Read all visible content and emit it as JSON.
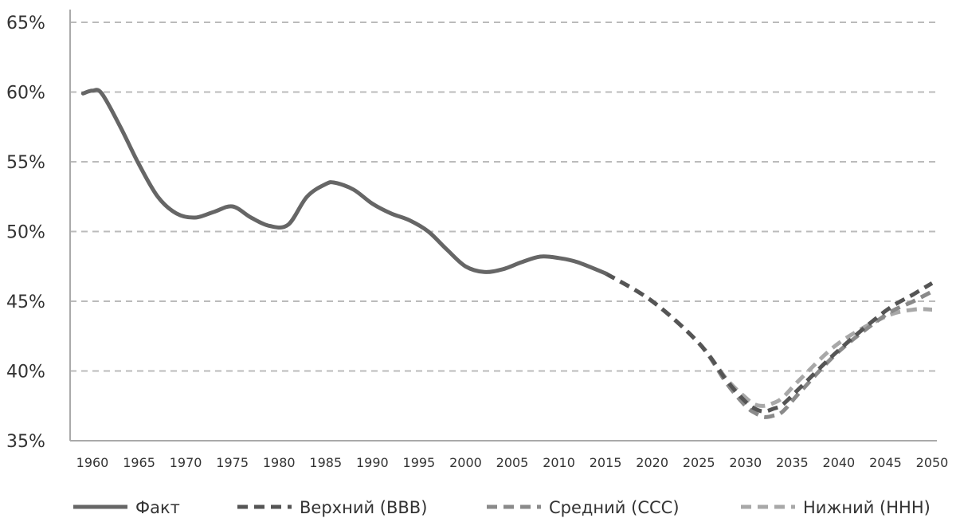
{
  "chart_data": {
    "type": "line",
    "title": "",
    "xlabel": "",
    "ylabel": "",
    "ylim": [
      35,
      65
    ],
    "xlim": [
      1960,
      2050
    ],
    "yticks": [
      "35%",
      "40%",
      "45%",
      "50%",
      "55%",
      "60%",
      "65%"
    ],
    "ytick_values": [
      35,
      40,
      45,
      50,
      55,
      60,
      65
    ],
    "xticks": [
      "1960",
      "1965",
      "1970",
      "1975",
      "1980",
      "1985",
      "1990",
      "1995",
      "2000",
      "2005",
      "2010",
      "2015",
      "2020",
      "2025",
      "2030",
      "2035",
      "2040",
      "2045",
      "2050"
    ],
    "xtick_values": [
      1960,
      1965,
      1970,
      1975,
      1980,
      1985,
      1990,
      1995,
      2000,
      2005,
      2010,
      2015,
      2020,
      2025,
      2030,
      2035,
      2040,
      2045,
      2050
    ],
    "grid": "horizontal dashed",
    "legend_position": "bottom",
    "series": [
      {
        "name": "Факт",
        "style": "solid",
        "color": "#666666",
        "x": [
          1959,
          1960,
          1961,
          1963,
          1965,
          1967,
          1969,
          1971,
          1973,
          1975,
          1977,
          1979,
          1981,
          1983,
          1985,
          1986,
          1988,
          1990,
          1992,
          1994,
          1996,
          1998,
          2000,
          2002,
          2004,
          2006,
          2008,
          2010,
          2012,
          2015
        ],
        "values": [
          59.9,
          60.1,
          59.9,
          57.5,
          54.8,
          52.5,
          51.3,
          51.0,
          51.4,
          51.8,
          51.0,
          50.4,
          50.5,
          52.5,
          53.4,
          53.5,
          53.0,
          52.0,
          51.3,
          50.8,
          50.0,
          48.7,
          47.5,
          47.1,
          47.3,
          47.8,
          48.2,
          48.1,
          47.8,
          47.0
        ]
      },
      {
        "name": "Верхний (ВВВ)",
        "style": "dashed",
        "color": "#555555",
        "x": [
          2015,
          2020,
          2025,
          2028,
          2030,
          2031,
          2032,
          2033,
          2034,
          2036,
          2040,
          2045,
          2048,
          2050
        ],
        "values": [
          47.0,
          45.0,
          42.0,
          39.3,
          37.8,
          37.3,
          37.1,
          37.3,
          37.6,
          38.9,
          41.5,
          44.3,
          45.5,
          46.3
        ]
      },
      {
        "name": "Средний (ССС)",
        "style": "dashed",
        "color": "#8a8a8a",
        "x": [
          2015,
          2020,
          2025,
          2028,
          2030,
          2031,
          2032,
          2033,
          2034,
          2036,
          2040,
          2045,
          2048,
          2050
        ],
        "values": [
          47.0,
          45.0,
          42.0,
          39.1,
          37.5,
          37.0,
          36.7,
          36.8,
          37.1,
          38.6,
          41.4,
          44.0,
          45.0,
          45.7
        ]
      },
      {
        "name": "Нижний (ННН)",
        "style": "dashed",
        "color": "#a8a8a8",
        "x": [
          2015,
          2020,
          2025,
          2028,
          2030,
          2031,
          2032,
          2033,
          2034,
          2036,
          2040,
          2045,
          2048,
          2050
        ],
        "values": [
          47.0,
          45.0,
          42.0,
          39.4,
          38.1,
          37.6,
          37.5,
          37.7,
          38.1,
          39.5,
          42.0,
          43.9,
          44.4,
          44.4
        ]
      }
    ]
  },
  "legend": {
    "items": [
      {
        "label": "Факт"
      },
      {
        "label": "Верхний (ВВВ)"
      },
      {
        "label": "Средний (ССС)"
      },
      {
        "label": "Нижний (ННН)"
      }
    ]
  }
}
